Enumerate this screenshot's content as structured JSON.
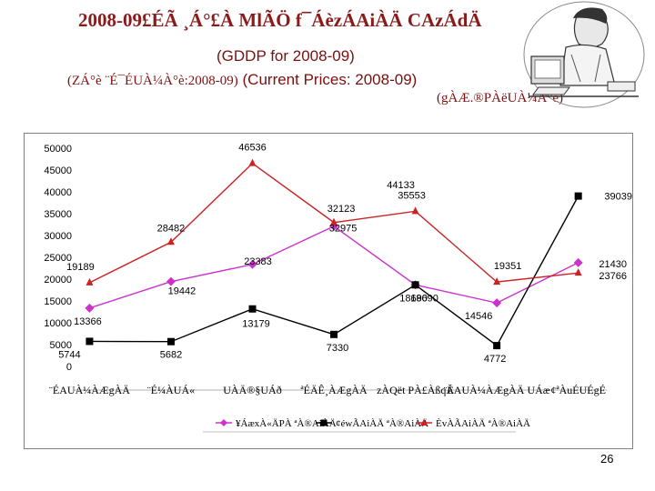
{
  "header": {
    "title": "2008-09£ÉÃ ¸Á°£À MlÃÖ f¯ÁèzÁAiÀÄ CAzÁdÄ",
    "subtitle": "(GDDP for 2008-09)",
    "line2_encoded": "(ZÁ°è ¨É¯ÉUÀ¼À°è:2008-09)",
    "line2_english": "(Current Prices: 2008-09)",
    "line3": "(gÀÆ.®PÀëUÀ¼À°è)"
  },
  "page_number": "26",
  "chart_data": {
    "type": "line",
    "title": "",
    "xlabel": "",
    "ylabel": "",
    "ylim": [
      0,
      50000
    ],
    "yticks": [
      "0",
      "5000",
      "10000",
      "15000",
      "20000",
      "25000",
      "30000",
      "35000",
      "40000",
      "45000",
      "50000"
    ],
    "categories": [
      "¨ÉAUÀ¼ÀÆgÀÄ",
      "¨É¼ÀUÁ«",
      "UÀÄ®§UÁð",
      "ªÉÄÊ¸ÀÆgÀÄ",
      "zÀQët PÀ£ÀßqÀ",
      "¨ÉAUÀ¼ÀÆgÀÄ UÁæ",
      "¢ªÀuÉUÉgÉ"
    ],
    "legend_position": "bottom",
    "grid": false,
    "series": [
      {
        "name": "¥ÁæxÀ«ÄPÀ ªÀ®AiÀÄ",
        "color": "#cc33cc",
        "marker": "diamond",
        "values": [
          13366,
          19442,
          23383,
          32123,
          18690,
          14546,
          23766
        ],
        "labels": [
          "13366",
          "19442",
          "23383",
          "32123",
          "18690",
          "14546",
          "23766"
        ]
      },
      {
        "name": "¢éwÃAiÀÄ ªÀ®AiÀÄ",
        "color": "#000000",
        "marker": "square",
        "values": [
          5744,
          5682,
          13179,
          7330,
          18690,
          4772,
          39039
        ],
        "labels": [
          "5744",
          "5682",
          "13179",
          "7330",
          "18690",
          "4772",
          "39039"
        ]
      },
      {
        "name": "ÈvÀÃAiÀÄ ªÀ®AiÀÄ",
        "color": "#cc2222",
        "marker": "triangle",
        "values": [
          19189,
          28482,
          46536,
          32975,
          35553,
          19351,
          21430
        ],
        "labels": [
          "19189",
          "28482",
          "46536",
          "32975",
          "35553",
          "19351",
          "21430"
        ]
      }
    ],
    "extra_labels": [
      "44133"
    ]
  }
}
